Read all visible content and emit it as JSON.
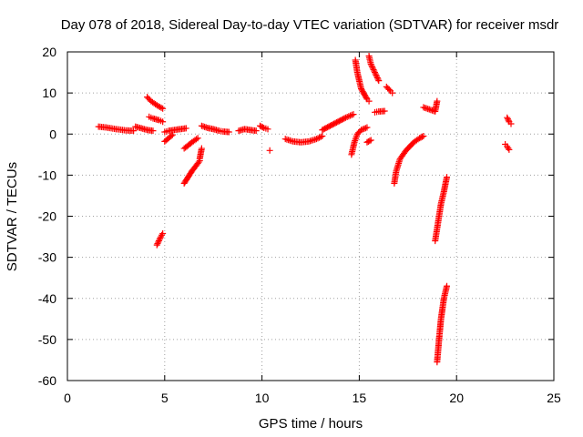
{
  "chart_data": {
    "type": "scatter",
    "title": "Day 078 of 2018, Sidereal Day-to-day VTEC variation (SDTVAR) for receiver msdr",
    "xlabel": "GPS time / hours",
    "ylabel": "SDTVAR / TECUs",
    "xlim": [
      0,
      25
    ],
    "ylim": [
      -60,
      20
    ],
    "x_ticks": [
      0,
      5,
      10,
      15,
      20,
      25
    ],
    "y_ticks": [
      -60,
      -50,
      -40,
      -30,
      -20,
      -10,
      0,
      10,
      20
    ],
    "x_tick_labels": [
      "0",
      "5",
      "10",
      "15",
      "20",
      "25"
    ],
    "y_tick_labels": [
      "-60",
      "-50",
      "-40",
      "-30",
      "-20",
      "-10",
      "0",
      "10",
      "20"
    ],
    "grid": true,
    "marker": "+",
    "color": "#ff0000",
    "segments": [
      {
        "x": [
          1.6,
          2.0,
          2.5,
          3.0,
          3.4
        ],
        "y": [
          1.8,
          1.6,
          1.2,
          0.9,
          0.8
        ]
      },
      {
        "x": [
          3.5,
          3.8,
          4.1,
          4.4
        ],
        "y": [
          1.8,
          1.4,
          1.0,
          0.8
        ]
      },
      {
        "x": [
          4.1,
          4.3,
          4.6,
          4.9
        ],
        "y": [
          9.0,
          8.0,
          7.0,
          6.2
        ]
      },
      {
        "x": [
          4.2,
          4.4,
          4.7,
          4.9
        ],
        "y": [
          4.2,
          3.8,
          3.4,
          3.0
        ]
      },
      {
        "x": [
          4.6,
          4.7,
          4.8,
          4.9
        ],
        "y": [
          -27.0,
          -26.0,
          -25.0,
          -24.2
        ]
      },
      {
        "x": [
          5.0,
          5.2,
          5.5,
          5.8,
          6.1
        ],
        "y": [
          0.5,
          0.8,
          1.0,
          1.2,
          1.4
        ]
      },
      {
        "x": [
          5.0,
          5.2,
          5.4
        ],
        "y": [
          -1.8,
          -1.0,
          -0.2
        ]
      },
      {
        "x": [
          6.0,
          6.2,
          6.4,
          6.7
        ],
        "y": [
          -3.5,
          -2.8,
          -2.0,
          -1.0
        ]
      },
      {
        "x": [
          6.0,
          6.2,
          6.4,
          6.6,
          6.8
        ],
        "y": [
          -12.0,
          -10.5,
          -9.0,
          -7.8,
          -6.5
        ]
      },
      {
        "x": [
          6.8,
          6.9
        ],
        "y": [
          -6.0,
          -3.5
        ]
      },
      {
        "x": [
          6.9,
          7.2,
          7.5,
          7.8,
          8.0,
          8.3
        ],
        "y": [
          2.0,
          1.5,
          1.2,
          0.8,
          0.6,
          0.5
        ]
      },
      {
        "x": [
          8.8,
          9.1,
          9.4,
          9.7
        ],
        "y": [
          0.8,
          1.2,
          1.0,
          0.8
        ]
      },
      {
        "x": [
          9.9,
          10.1,
          10.3
        ],
        "y": [
          2.0,
          1.5,
          1.2
        ]
      },
      {
        "x": [
          10.4
        ],
        "y": [
          -4.0
        ]
      },
      {
        "x": [
          11.2,
          11.6,
          12.0,
          12.4,
          12.8,
          13.1
        ],
        "y": [
          -1.2,
          -1.8,
          -2.0,
          -1.8,
          -1.2,
          -0.5
        ]
      },
      {
        "x": [
          13.1,
          13.5,
          13.9,
          14.3,
          14.7
        ],
        "y": [
          1.0,
          2.0,
          3.0,
          4.0,
          4.8
        ]
      },
      {
        "x": [
          14.6,
          14.75,
          14.9,
          15.1,
          15.4
        ],
        "y": [
          -5.0,
          -2.0,
          0.0,
          1.0,
          1.6
        ]
      },
      {
        "x": [
          14.8,
          14.9,
          15.1,
          15.4,
          15.5
        ],
        "y": [
          18.0,
          15.0,
          11.0,
          8.5,
          8.0
        ]
      },
      {
        "x": [
          15.5,
          15.6,
          15.8,
          16.0
        ],
        "y": [
          19.0,
          17.0,
          15.0,
          13.0
        ]
      },
      {
        "x": [
          15.4,
          15.6
        ],
        "y": [
          -2.0,
          -1.5
        ]
      },
      {
        "x": [
          15.8,
          16.0,
          16.3
        ],
        "y": [
          5.3,
          5.5,
          5.6
        ]
      },
      {
        "x": [
          16.4,
          16.6,
          16.7
        ],
        "y": [
          11.5,
          10.5,
          10.0
        ]
      },
      {
        "x": [
          16.8,
          16.9,
          17.1,
          17.4,
          17.8,
          18.1,
          18.3
        ],
        "y": [
          -12.0,
          -9.0,
          -6.0,
          -4.0,
          -2.0,
          -1.0,
          -0.5
        ]
      },
      {
        "x": [
          18.3,
          18.6,
          18.9,
          19.0
        ],
        "y": [
          6.5,
          6.0,
          5.5,
          8.0
        ]
      },
      {
        "x": [
          18.9,
          19.0,
          19.1,
          19.2,
          19.35,
          19.5
        ],
        "y": [
          -26.0,
          -23.0,
          -20.0,
          -17.0,
          -14.0,
          -10.5
        ]
      },
      {
        "x": [
          19.0,
          19.1,
          19.2,
          19.35,
          19.5
        ],
        "y": [
          -55.5,
          -50.0,
          -45.0,
          -40.0,
          -37.0
        ]
      },
      {
        "x": [
          22.5,
          22.6,
          22.7
        ],
        "y": [
          -2.5,
          -3.0,
          -3.8
        ]
      },
      {
        "x": [
          22.6,
          22.7,
          22.8
        ],
        "y": [
          4.0,
          3.0,
          2.5
        ]
      }
    ]
  }
}
